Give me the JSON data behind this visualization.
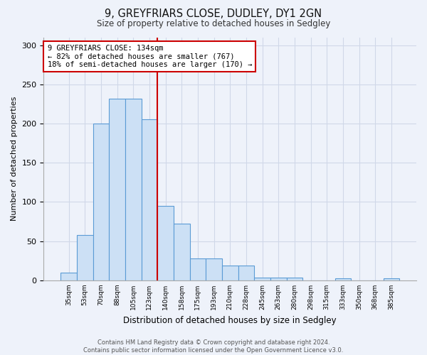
{
  "title1": "9, GREYFRIARS CLOSE, DUDLEY, DY1 2GN",
  "title2": "Size of property relative to detached houses in Sedgley",
  "xlabel": "Distribution of detached houses by size in Sedgley",
  "ylabel": "Number of detached properties",
  "categories": [
    "35sqm",
    "53sqm",
    "70sqm",
    "88sqm",
    "105sqm",
    "123sqm",
    "140sqm",
    "158sqm",
    "175sqm",
    "193sqm",
    "210sqm",
    "228sqm",
    "245sqm",
    "263sqm",
    "280sqm",
    "298sqm",
    "315sqm",
    "333sqm",
    "350sqm",
    "368sqm",
    "385sqm"
  ],
  "values": [
    10,
    58,
    200,
    232,
    232,
    205,
    95,
    72,
    28,
    28,
    19,
    19,
    4,
    4,
    4,
    0,
    0,
    3,
    0,
    0,
    3
  ],
  "bar_color": "#cce0f5",
  "bar_edge_color": "#5b9bd5",
  "vline_x_index": 6,
  "vline_color": "#cc0000",
  "annotation_text": "9 GREYFRIARS CLOSE: 134sqm\n← 82% of detached houses are smaller (767)\n18% of semi-detached houses are larger (170) →",
  "annotation_box_color": "white",
  "annotation_box_edge_color": "#cc0000",
  "ylim": [
    0,
    310
  ],
  "yticks": [
    0,
    50,
    100,
    150,
    200,
    250,
    300
  ],
  "grid_color": "#d0d8e8",
  "bg_color": "#eef2fa",
  "footer": "Contains HM Land Registry data © Crown copyright and database right 2024.\nContains public sector information licensed under the Open Government Licence v3.0."
}
